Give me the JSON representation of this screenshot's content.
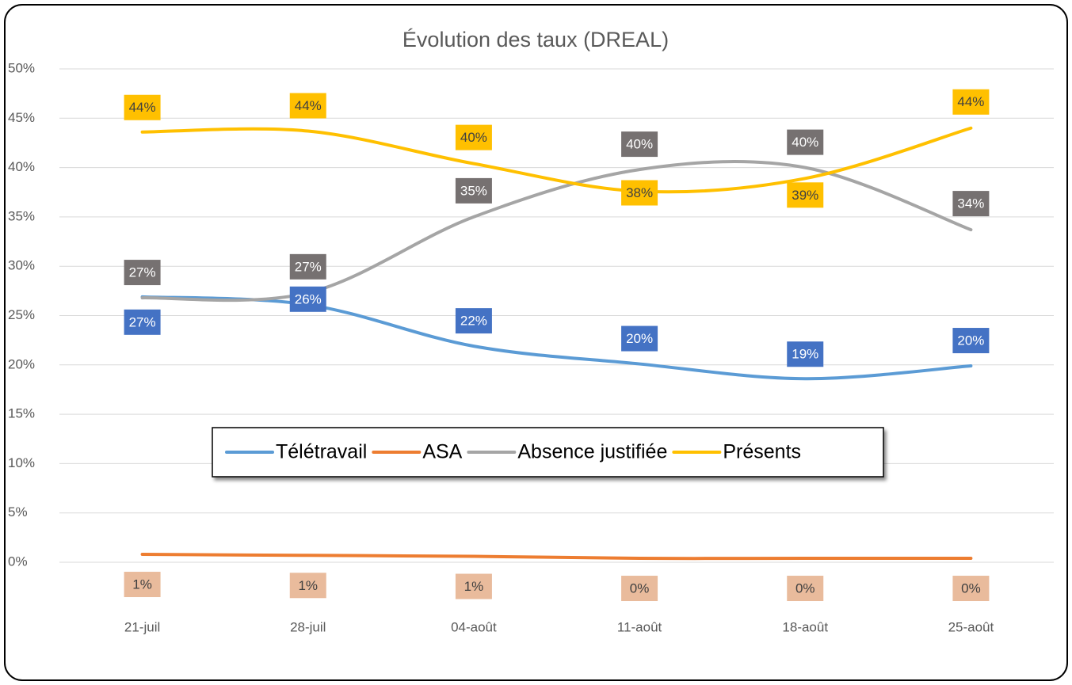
{
  "chart_data": {
    "type": "line",
    "title": "Évolution des taux (DREAL)",
    "categories": [
      "21-juil",
      "28-juil",
      "04-août",
      "11-août",
      "18-août",
      "25-août"
    ],
    "series": [
      {
        "name": "Télétravail",
        "color": "#5b9bd5",
        "values": [
          26.9,
          26.1,
          21.9,
          20.1,
          18.6,
          19.9
        ],
        "value_labels": [
          "27%",
          "26%",
          "22%",
          "20%",
          "19%",
          "20%"
        ]
      },
      {
        "name": "ASA",
        "color": "#ed7d31",
        "values": [
          0.8,
          0.7,
          0.6,
          0.4,
          0.4,
          0.4
        ],
        "value_labels": [
          "1%",
          "1%",
          "1%",
          "0%",
          "0%",
          "0%"
        ]
      },
      {
        "name": "Absence justifiée",
        "color": "#a5a5a5",
        "values": [
          26.8,
          27.3,
          35.0,
          39.8,
          40.0,
          33.7
        ],
        "value_labels": [
          "27%",
          "27%",
          "35%",
          "40%",
          "40%",
          "34%"
        ]
      },
      {
        "name": "Présents",
        "color": "#ffc000",
        "values": [
          43.6,
          43.7,
          40.4,
          37.6,
          38.9,
          44.0
        ],
        "value_labels": [
          "44%",
          "44%",
          "40%",
          "38%",
          "39%",
          "44%"
        ]
      }
    ],
    "ylim": [
      0,
      50
    ],
    "yticks": [
      {
        "value": 0,
        "label": "0%"
      },
      {
        "value": 5,
        "label": "5%"
      },
      {
        "value": 10,
        "label": "10%"
      },
      {
        "value": 15,
        "label": "15%"
      },
      {
        "value": 20,
        "label": "20%"
      },
      {
        "value": 25,
        "label": "25%"
      },
      {
        "value": 30,
        "label": "30%"
      },
      {
        "value": 35,
        "label": "35%"
      },
      {
        "value": 40,
        "label": "40%"
      },
      {
        "value": 45,
        "label": "45%"
      },
      {
        "value": 50,
        "label": "50%"
      }
    ],
    "grid": true,
    "legend": "center"
  }
}
